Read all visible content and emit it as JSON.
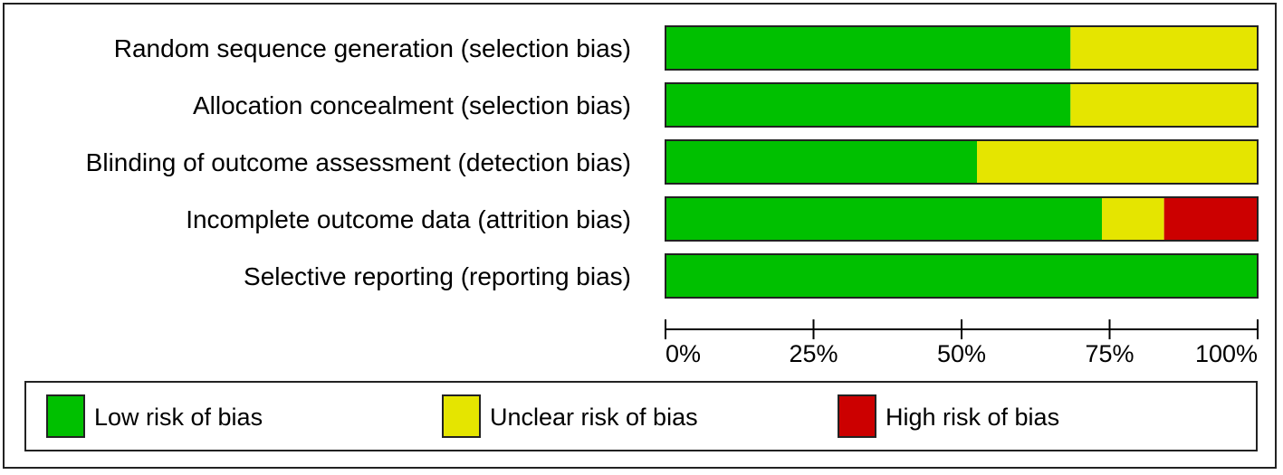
{
  "chart_data": {
    "type": "bar",
    "stacked": true,
    "orientation": "horizontal",
    "categories": [
      "Random sequence generation (selection bias)",
      "Allocation concealment (selection bias)",
      "Blinding of outcome assessment (detection bias)",
      "Incomplete outcome data (attrition bias)",
      "Selective reporting (reporting bias)"
    ],
    "series": [
      {
        "name": "Low risk of bias",
        "color": "#00c000",
        "values": [
          68.4,
          68.4,
          52.6,
          73.7,
          100
        ]
      },
      {
        "name": "Unclear risk of bias",
        "color": "#e5e500",
        "values": [
          31.6,
          31.6,
          47.4,
          10.5,
          0
        ]
      },
      {
        "name": "High risk of bias",
        "color": "#cc0000",
        "values": [
          0,
          0,
          0,
          15.8,
          0
        ]
      }
    ],
    "xlim": [
      0,
      100
    ],
    "x_ticks": [
      "0%",
      "25%",
      "50%",
      "75%",
      "100%"
    ],
    "legend_position": "bottom",
    "grid": false
  }
}
